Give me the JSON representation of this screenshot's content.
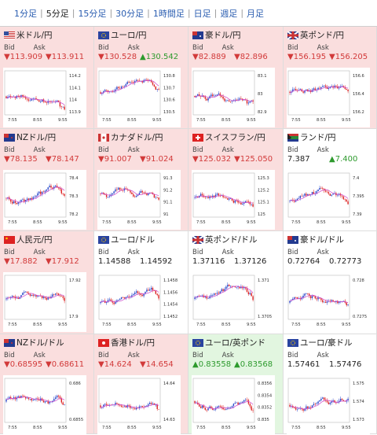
{
  "tabs": [
    "1分足",
    "5分足",
    "15分足",
    "30分足",
    "1時間足",
    "日足",
    "週足",
    "月足"
  ],
  "active_tab": 1,
  "colors": {
    "down": "#d23a3a",
    "up": "#2d9a2d",
    "pink_bg": "#fadede",
    "green_bg": "#e2f6e0",
    "tab_link": "#2a5db0",
    "ma_line": "#cc44cc"
  },
  "labels": {
    "bid": "Bid",
    "ask": "Ask"
  },
  "cards": [
    {
      "name": "米ドル/円",
      "flag": "us-flag",
      "bg": "pink",
      "dir_bid": "down",
      "dir_ask": "down",
      "arrow_bid": "▼",
      "arrow_ask": "▼",
      "bid": "113.909",
      "ask": "113.911",
      "yticks": [
        "114.2",
        "114.1",
        "114",
        "113.9"
      ],
      "xticks": [
        "7:55",
        "8:55",
        "9:55"
      ]
    },
    {
      "name": "ユーロ/円",
      "flag": "eu-flag",
      "bg": "pink",
      "dir_bid": "down",
      "dir_ask": "up",
      "arrow_bid": "▼",
      "arrow_ask": "▲",
      "bid": "130.528",
      "ask": "130.542",
      "yticks": [
        "130.8",
        "130.7",
        "130.6",
        "130.5"
      ],
      "xticks": [
        "7:55",
        "8:55",
        "9:55"
      ]
    },
    {
      "name": "豪ドル/円",
      "flag": "au-flag",
      "bg": "pink",
      "dir_bid": "down",
      "dir_ask": "down",
      "arrow_bid": "▼",
      "arrow_ask": "▼",
      "bid": "82.889",
      "ask": "82.896",
      "yticks": [
        "83.1",
        "83",
        "82.9"
      ],
      "xticks": [
        "7:55",
        "8:55",
        "9:55"
      ]
    },
    {
      "name": "英ポンド/円",
      "flag": "gb-flag",
      "bg": "pink",
      "dir_bid": "down",
      "dir_ask": "down",
      "arrow_bid": "▼",
      "arrow_ask": "▼",
      "bid": "156.195",
      "ask": "156.205",
      "yticks": [
        "156.6",
        "156.4",
        "156.2"
      ],
      "xticks": [
        "7:55",
        "8:55",
        "9:55"
      ]
    },
    {
      "name": "NZドル/円",
      "flag": "nz-flag",
      "bg": "pink",
      "dir_bid": "down",
      "dir_ask": "down",
      "arrow_bid": "▼",
      "arrow_ask": "▼",
      "bid": "78.135",
      "ask": "78.147",
      "yticks": [
        "78.4",
        "78.3",
        "78.2"
      ],
      "xticks": [
        "7:55",
        "8:55",
        "9:55"
      ]
    },
    {
      "name": "カナダドル/円",
      "flag": "ca-flag",
      "bg": "pink",
      "dir_bid": "down",
      "dir_ask": "down",
      "arrow_bid": "▼",
      "arrow_ask": "▼",
      "bid": "91.007",
      "ask": "91.024",
      "yticks": [
        "91.3",
        "91.2",
        "91.1",
        "91"
      ],
      "xticks": [
        "7:55",
        "8:55",
        "9:55"
      ]
    },
    {
      "name": "スイスフラン/円",
      "flag": "ch-flag",
      "bg": "pink",
      "dir_bid": "down",
      "dir_ask": "down",
      "arrow_bid": "▼",
      "arrow_ask": "▼",
      "bid": "125.032",
      "ask": "125.050",
      "yticks": [
        "125.3",
        "125.2",
        "125.1",
        "125"
      ],
      "xticks": [
        "7:55",
        "8:55",
        "9:55"
      ]
    },
    {
      "name": "ランド/円",
      "flag": "za-flag",
      "bg": "blue",
      "dir_bid": "neu",
      "dir_ask": "up",
      "arrow_bid": "",
      "arrow_ask": "▲",
      "bid": "7.387",
      "ask": "7.400",
      "yticks": [
        "7.4",
        "7.395",
        "7.39"
      ],
      "xticks": [
        "7:55",
        "8:55",
        "9:55"
      ]
    },
    {
      "name": "人民元/円",
      "flag": "cn-flag",
      "bg": "pink",
      "dir_bid": "down",
      "dir_ask": "down",
      "arrow_bid": "▼",
      "arrow_ask": "▼",
      "bid": "17.882",
      "ask": "17.912",
      "yticks": [
        "17.92",
        "17.9"
      ],
      "xticks": [
        "7:55",
        "8:55",
        "9:55"
      ]
    },
    {
      "name": "ユーロ/ドル",
      "flag": "eu-flag",
      "bg": "blue",
      "dir_bid": "neu",
      "dir_ask": "neu",
      "arrow_bid": "",
      "arrow_ask": "",
      "bid": "1.14588",
      "ask": "1.14592",
      "yticks": [
        "1.1458",
        "1.1456",
        "1.1454",
        "1.1452"
      ],
      "xticks": [
        "7:55",
        "8:55",
        "9:55"
      ]
    },
    {
      "name": "英ポンド/ドル",
      "flag": "gb-flag",
      "bg": "blue",
      "dir_bid": "neu",
      "dir_ask": "neu",
      "arrow_bid": "",
      "arrow_ask": "",
      "bid": "1.37116",
      "ask": "1.37126",
      "yticks": [
        "1.371",
        "1.3705"
      ],
      "xticks": [
        "7:55",
        "8:55",
        "9:55"
      ]
    },
    {
      "name": "豪ドル/ドル",
      "flag": "au-flag",
      "bg": "blue",
      "dir_bid": "neu",
      "dir_ask": "neu",
      "arrow_bid": "",
      "arrow_ask": "",
      "bid": "0.72764",
      "ask": "0.72773",
      "yticks": [
        "0.728",
        "0.7275"
      ],
      "xticks": [
        "7:55",
        "8:55",
        "9:55"
      ]
    },
    {
      "name": "NZドル/ドル",
      "flag": "nz-flag",
      "bg": "pink",
      "dir_bid": "down",
      "dir_ask": "down",
      "arrow_bid": "▼",
      "arrow_ask": "▼",
      "bid": "0.68595",
      "ask": "0.68611",
      "yticks": [
        "0.686",
        "0.6855"
      ],
      "xticks": [
        "7:55",
        "8:55",
        "9:55"
      ]
    },
    {
      "name": "香港ドル/円",
      "flag": "hk-flag",
      "bg": "pink",
      "dir_bid": "down",
      "dir_ask": "down",
      "arrow_bid": "▼",
      "arrow_ask": "▼",
      "bid": "14.624",
      "ask": "14.654",
      "yticks": [
        "14.64",
        "14.63"
      ],
      "xticks": [
        "7:55",
        "8:55",
        "9:55"
      ]
    },
    {
      "name": "ユーロ/英ポンド",
      "flag": "eu-flag",
      "bg": "green",
      "dir_bid": "up",
      "dir_ask": "up",
      "arrow_bid": "▲",
      "arrow_ask": "▲",
      "bid": "0.83558",
      "ask": "0.83568",
      "yticks": [
        "0.8356",
        "0.8354",
        "0.8352",
        "0.835"
      ],
      "xticks": [
        "7:55",
        "8:55",
        "9:55"
      ]
    },
    {
      "name": "ユーロ/豪ドル",
      "flag": "eu-flag",
      "bg": "blue",
      "dir_bid": "neu",
      "dir_ask": "neu",
      "arrow_bid": "",
      "arrow_ask": "",
      "bid": "1.57461",
      "ask": "1.57476",
      "yticks": [
        "1.575",
        "1.574",
        "1.573"
      ],
      "xticks": [
        "7:55",
        "8:55",
        "9:55"
      ]
    }
  ]
}
